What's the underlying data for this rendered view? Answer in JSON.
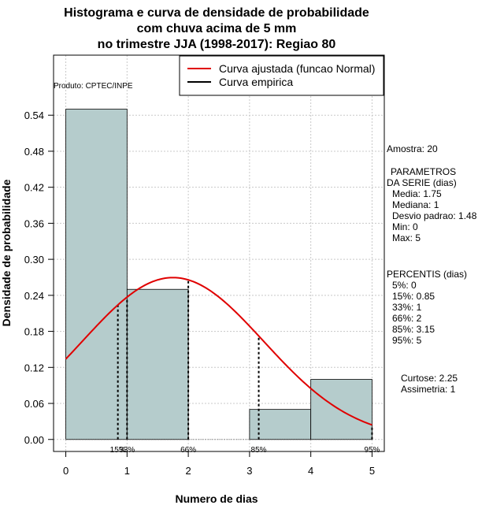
{
  "chart_data": {
    "type": "bar",
    "title_lines": [
      "Histograma e curva de densidade de probabilidade",
      "com chuva acima de 5 mm",
      "no trimestre JJA (1998-2017): Regiao 80"
    ],
    "xlabel": "Numero de dias",
    "ylabel": "Densidade de probabilidade",
    "xlim": [
      -0.2,
      5.2
    ],
    "ylim": [
      -0.02,
      0.64
    ],
    "x_ticks": [
      "0",
      "1",
      "2",
      "3",
      "4",
      "5"
    ],
    "y_ticks": [
      "0.00",
      "0.06",
      "0.12",
      "0.18",
      "0.24",
      "0.30",
      "0.36",
      "0.42",
      "0.48",
      "0.54"
    ],
    "bins": [
      {
        "from": 0,
        "to": 1,
        "density": 0.55
      },
      {
        "from": 1,
        "to": 2,
        "density": 0.25
      },
      {
        "from": 2,
        "to": 3,
        "density": 0.0
      },
      {
        "from": 3,
        "to": 4,
        "density": 0.05
      },
      {
        "from": 4,
        "to": 5,
        "density": 0.1
      }
    ],
    "normal_fit": {
      "mean": 1.75,
      "sd": 1.48,
      "x_range": [
        0,
        5
      ]
    },
    "percentiles": [
      {
        "label": "15%",
        "x": 0.85
      },
      {
        "label": "33%",
        "x": 1
      },
      {
        "label": "66%",
        "x": 2
      },
      {
        "label": "85%",
        "x": 3.15
      },
      {
        "label": "95%",
        "x": 5
      }
    ],
    "legend": {
      "position": "top-right",
      "entries": [
        {
          "label": "Curva ajustada (funcao Normal)",
          "color": "#e00000"
        },
        {
          "label": "Curva empirica",
          "color": "#000000"
        }
      ]
    },
    "grid": true,
    "bar_color": "#b5cccc",
    "product_label": "Produto: CPTEC/INPE"
  },
  "stats_panel": {
    "sample": "Amostra: 20",
    "params_title": "PARAMETROS",
    "params_subtitle": "DA SERIE (dias)",
    "params": [
      "Media: 1.75",
      "Mediana: 1",
      "Desvio padrao: 1.48",
      "Min: 0",
      "Max: 5"
    ],
    "percentis_title": "PERCENTIS (dias)",
    "percentis": [
      "5%: 0",
      "15%: 0.85",
      "33%: 1",
      "66%: 2",
      "85%: 3.15",
      "95%: 5"
    ],
    "curtose": "Curtose: 2.25",
    "assimetria": "Assimetria: 1"
  }
}
